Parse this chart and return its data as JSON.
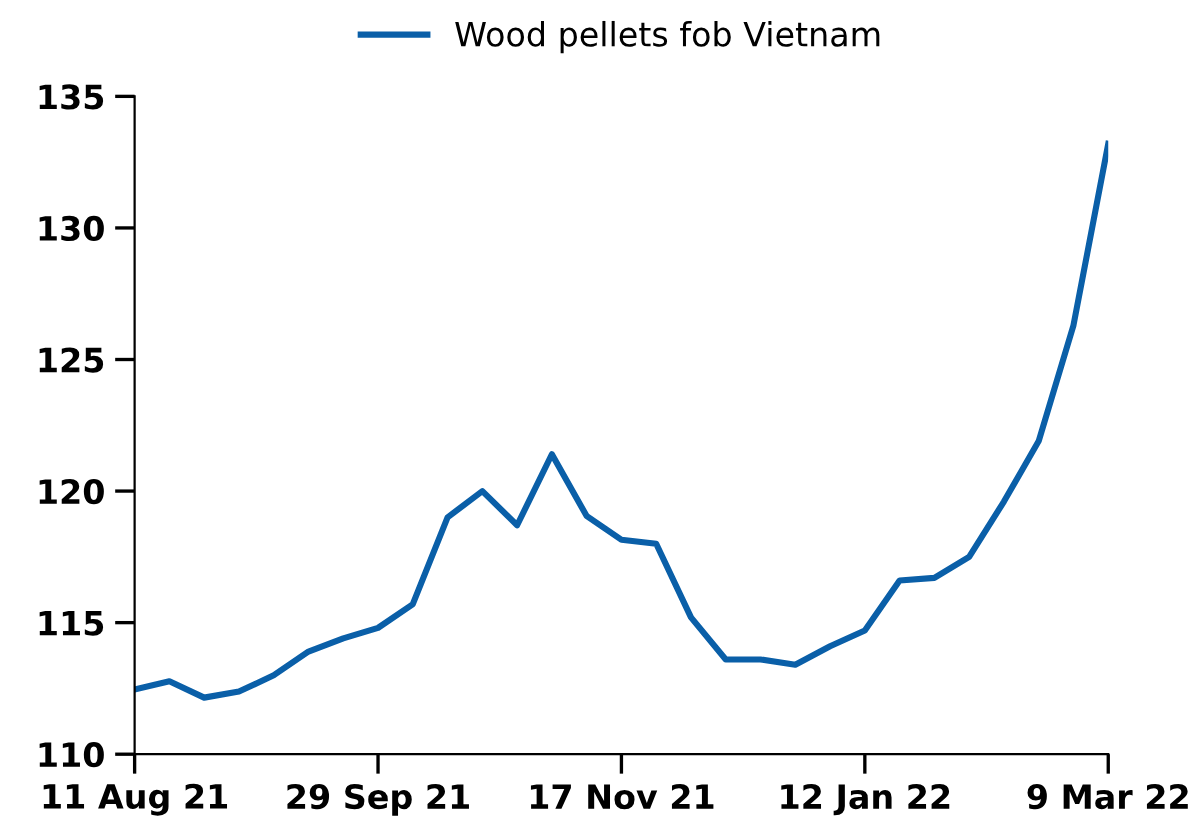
{
  "chart_data": {
    "type": "line",
    "categories": [
      "11 Aug 21",
      null,
      null,
      null,
      null,
      null,
      null,
      "29 Sep 21",
      null,
      null,
      null,
      null,
      null,
      null,
      "17 Nov 21",
      null,
      null,
      null,
      null,
      null,
      null,
      "12 Jan 22",
      null,
      null,
      null,
      null,
      null,
      null,
      "9 Mar 22"
    ],
    "series": [
      {
        "name": "Wood pellets fob Vietnam",
        "color": "#0a5fa8",
        "values": [
          112.46,
          112.77,
          112.15,
          112.38,
          113.0,
          113.9,
          114.4,
          114.8,
          115.7,
          119.0,
          120.0,
          118.7,
          121.4,
          119.05,
          118.15,
          118.0,
          115.2,
          113.6,
          113.6,
          113.4,
          114.1,
          114.7,
          116.6,
          116.7,
          117.5,
          119.6,
          121.9,
          126.3,
          133.2
        ]
      }
    ],
    "ylim": [
      110,
      135
    ],
    "yticks": [
      110,
      115,
      120,
      125,
      130,
      135
    ],
    "grid": false,
    "legend": "top",
    "marker": "none",
    "line_style": "solid"
  }
}
